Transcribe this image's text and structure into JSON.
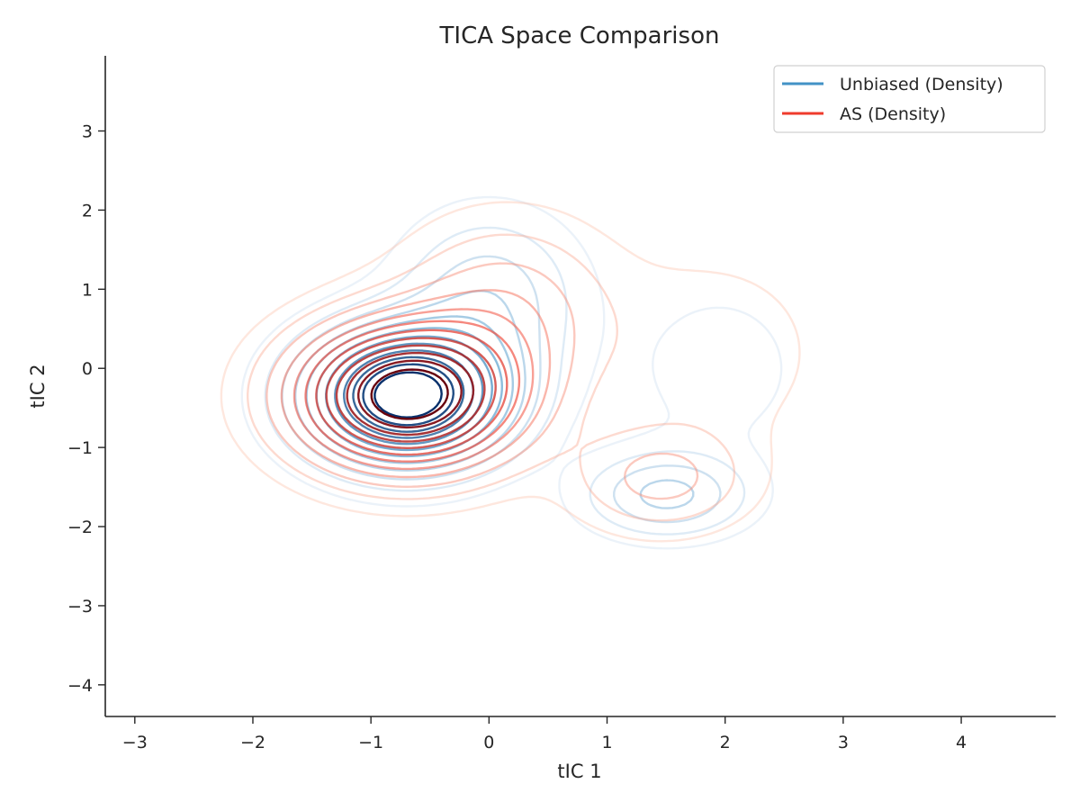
{
  "chart_data": {
    "type": "contour",
    "title": "TICA Space Comparison",
    "xlabel": "tIC 1",
    "ylabel": "tIC 2",
    "xlim": [
      -3.25,
      4.8
    ],
    "ylim": [
      -4.4,
      3.95
    ],
    "xticks": [
      -3,
      -2,
      -1,
      0,
      1,
      2,
      3,
      4
    ],
    "yticks": [
      -4,
      -3,
      -2,
      -1,
      0,
      1,
      2,
      3
    ],
    "xtick_labels": [
      "−3",
      "−2",
      "−1",
      "0",
      "1",
      "2",
      "3",
      "4"
    ],
    "ytick_labels": [
      "−4",
      "−3",
      "−2",
      "−1",
      "0",
      "1",
      "2",
      "3"
    ],
    "grid": false,
    "legend_position": "top-right",
    "series": [
      {
        "name": "Unbiased (Density)",
        "color": "#4292c6",
        "colormap": "Blues",
        "levels": 12,
        "components": [
          {
            "x": -0.7,
            "y": -0.35,
            "sx": 0.55,
            "sy": 0.55,
            "w": 0.75
          },
          {
            "x": 0.0,
            "y": 0.9,
            "sx": 0.5,
            "sy": 0.7,
            "w": 0.18
          },
          {
            "x": 1.5,
            "y": -1.6,
            "sx": 0.45,
            "sy": 0.35,
            "w": 0.1
          },
          {
            "x": 1.95,
            "y": 0.0,
            "sx": 0.55,
            "sy": 0.8,
            "w": 0.07
          }
        ]
      },
      {
        "name": "AS (Density)",
        "color": "#ef3b2c",
        "colormap": "Reds",
        "levels": 12,
        "components": [
          {
            "x": -0.7,
            "y": -0.35,
            "sx": 0.62,
            "sy": 0.6,
            "w": 0.72
          },
          {
            "x": 0.15,
            "y": 0.75,
            "sx": 0.6,
            "sy": 0.75,
            "w": 0.18
          },
          {
            "x": 1.45,
            "y": -1.4,
            "sx": 0.5,
            "sy": 0.45,
            "w": 0.08
          },
          {
            "x": 1.9,
            "y": 0.2,
            "sx": 0.6,
            "sy": 0.8,
            "w": 0.08
          }
        ]
      }
    ]
  }
}
